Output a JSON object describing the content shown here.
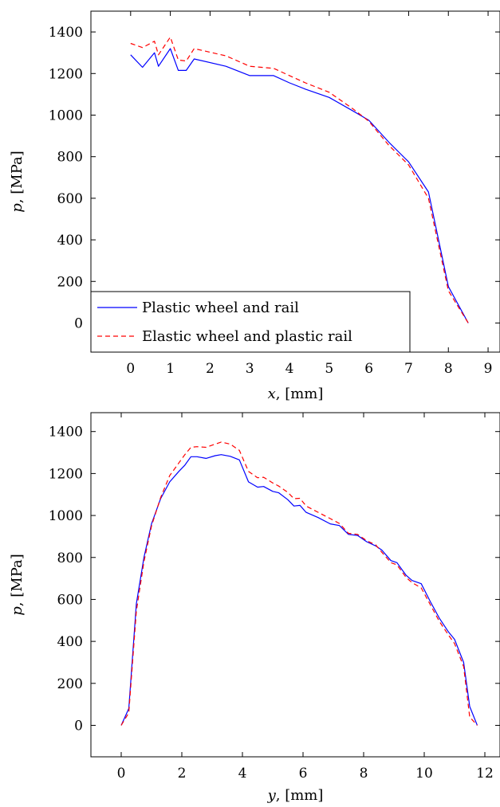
{
  "chart_data": [
    {
      "type": "line",
      "xlabel_var": "x",
      "xlabel_unit": ", [mm]",
      "ylabel_var": "p",
      "ylabel_unit": ", [MPa]",
      "xlim": [
        -1,
        9.3
      ],
      "ylim": [
        -140,
        1500
      ],
      "xticks": [
        0,
        1,
        2,
        3,
        4,
        5,
        6,
        7,
        8,
        9
      ],
      "yticks": [
        0,
        200,
        400,
        600,
        800,
        1000,
        1200,
        1400
      ],
      "legend": "bottom-left",
      "grid": false,
      "series": [
        {
          "name": "Plastic wheel and rail",
          "color": "#0000ff",
          "dash": "solid",
          "x": [
            0,
            0.3,
            0.6,
            0.7,
            1.0,
            1.2,
            1.4,
            1.6,
            2.4,
            3.0,
            3.6,
            4.0,
            4.4,
            5.0,
            5.6,
            6.0,
            6.5,
            7.0,
            7.5,
            8.0,
            8.5
          ],
          "y": [
            1290,
            1230,
            1300,
            1235,
            1320,
            1215,
            1215,
            1270,
            1235,
            1190,
            1190,
            1155,
            1125,
            1085,
            1020,
            975,
            870,
            775,
            630,
            175,
            0
          ]
        },
        {
          "name": "Elastic wheel and plastic rail",
          "color": "#ff0000",
          "dash": "dashed",
          "x": [
            0,
            0.3,
            0.6,
            0.7,
            1.0,
            1.2,
            1.4,
            1.6,
            2.4,
            3.0,
            3.6,
            4.0,
            4.4,
            5.0,
            5.6,
            6.0,
            6.5,
            7.0,
            7.5,
            8.0,
            8.5
          ],
          "y": [
            1345,
            1325,
            1355,
            1290,
            1375,
            1265,
            1260,
            1320,
            1285,
            1235,
            1225,
            1190,
            1155,
            1110,
            1030,
            970,
            855,
            760,
            600,
            155,
            0
          ]
        }
      ]
    },
    {
      "type": "line",
      "xlabel_var": "y",
      "xlabel_unit": ", [mm]",
      "ylabel_var": "p",
      "ylabel_unit": ", [MPa]",
      "xlim": [
        -1,
        12.5
      ],
      "ylim": [
        -150,
        1490
      ],
      "xticks": [
        0,
        2,
        4,
        6,
        8,
        10,
        12
      ],
      "yticks": [
        0,
        200,
        400,
        600,
        800,
        1000,
        1200,
        1400
      ],
      "grid": false,
      "series": [
        {
          "name": "Plastic wheel and rail",
          "color": "#0000ff",
          "dash": "solid",
          "x": [
            0,
            0.25,
            0.5,
            0.75,
            1.0,
            1.3,
            1.6,
            1.9,
            2.1,
            2.3,
            2.5,
            2.8,
            3.1,
            3.3,
            3.6,
            3.9,
            4.2,
            4.5,
            4.7,
            5.0,
            5.2,
            5.5,
            5.7,
            5.9,
            6.1,
            6.5,
            6.9,
            7.2,
            7.5,
            7.8,
            8.1,
            8.4,
            8.6,
            8.9,
            9.1,
            9.4,
            9.6,
            9.9,
            10.2,
            10.5,
            10.8,
            11.0,
            11.3,
            11.5,
            11.75
          ],
          "y": [
            0,
            80,
            580,
            800,
            960,
            1080,
            1160,
            1210,
            1240,
            1280,
            1280,
            1272,
            1285,
            1290,
            1282,
            1265,
            1160,
            1135,
            1138,
            1115,
            1108,
            1075,
            1045,
            1048,
            1015,
            990,
            960,
            952,
            910,
            905,
            875,
            855,
            835,
            785,
            775,
            715,
            690,
            675,
            590,
            510,
            445,
            410,
            300,
            90,
            0
          ]
        },
        {
          "name": "Elastic wheel and plastic rail",
          "color": "#ff0000",
          "dash": "dashed",
          "x": [
            0,
            0.25,
            0.5,
            0.75,
            1.0,
            1.3,
            1.6,
            1.9,
            2.1,
            2.3,
            2.5,
            2.8,
            3.1,
            3.3,
            3.6,
            3.9,
            4.2,
            4.5,
            4.7,
            5.0,
            5.2,
            5.5,
            5.7,
            5.9,
            6.1,
            6.5,
            6.9,
            7.2,
            7.5,
            7.8,
            8.1,
            8.4,
            8.6,
            8.9,
            9.1,
            9.4,
            9.6,
            9.9,
            10.2,
            10.5,
            10.8,
            11.0,
            11.3,
            11.5,
            11.75
          ],
          "y": [
            0,
            60,
            545,
            780,
            950,
            1085,
            1190,
            1250,
            1290,
            1325,
            1328,
            1325,
            1340,
            1350,
            1340,
            1310,
            1210,
            1180,
            1182,
            1155,
            1140,
            1110,
            1080,
            1082,
            1045,
            1015,
            985,
            962,
            915,
            910,
            880,
            860,
            825,
            775,
            765,
            705,
            680,
            655,
            575,
            495,
            430,
            390,
            280,
            40,
            0
          ]
        }
      ]
    }
  ]
}
